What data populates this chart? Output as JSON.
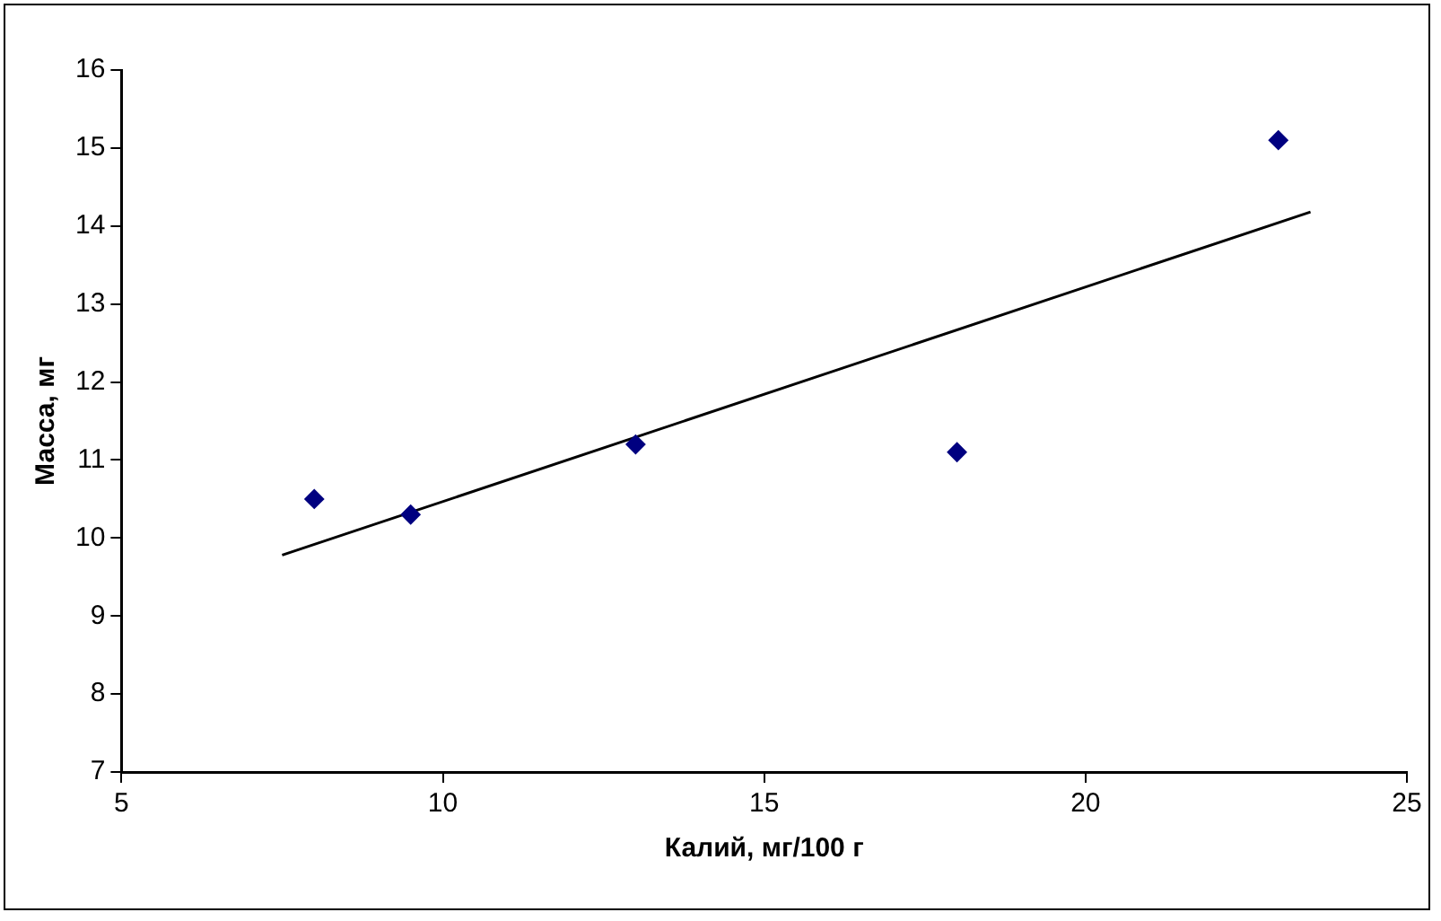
{
  "chart_data": {
    "type": "scatter",
    "xlabel": "Калий, мг/100 г",
    "ylabel": "Масса, мг",
    "xlim": [
      5,
      25
    ],
    "xticks": [
      5,
      10,
      15,
      20,
      25
    ],
    "ylim": [
      7,
      16
    ],
    "yticks": [
      7,
      8,
      9,
      10,
      11,
      12,
      13,
      14,
      15,
      16
    ],
    "grid": false,
    "legend": false,
    "marker": "diamond",
    "series": [
      {
        "color": "#000080",
        "x": [
          8,
          9.5,
          13,
          18,
          23
        ],
        "values": [
          10.5,
          10.3,
          11.2,
          11.1,
          15.1
        ]
      },
      {
        "type": "line",
        "color": "#000000",
        "marker": "none",
        "line_style": "solid",
        "x": [
          7.5,
          23.5
        ],
        "values": [
          9.78,
          14.18
        ]
      }
    ]
  }
}
